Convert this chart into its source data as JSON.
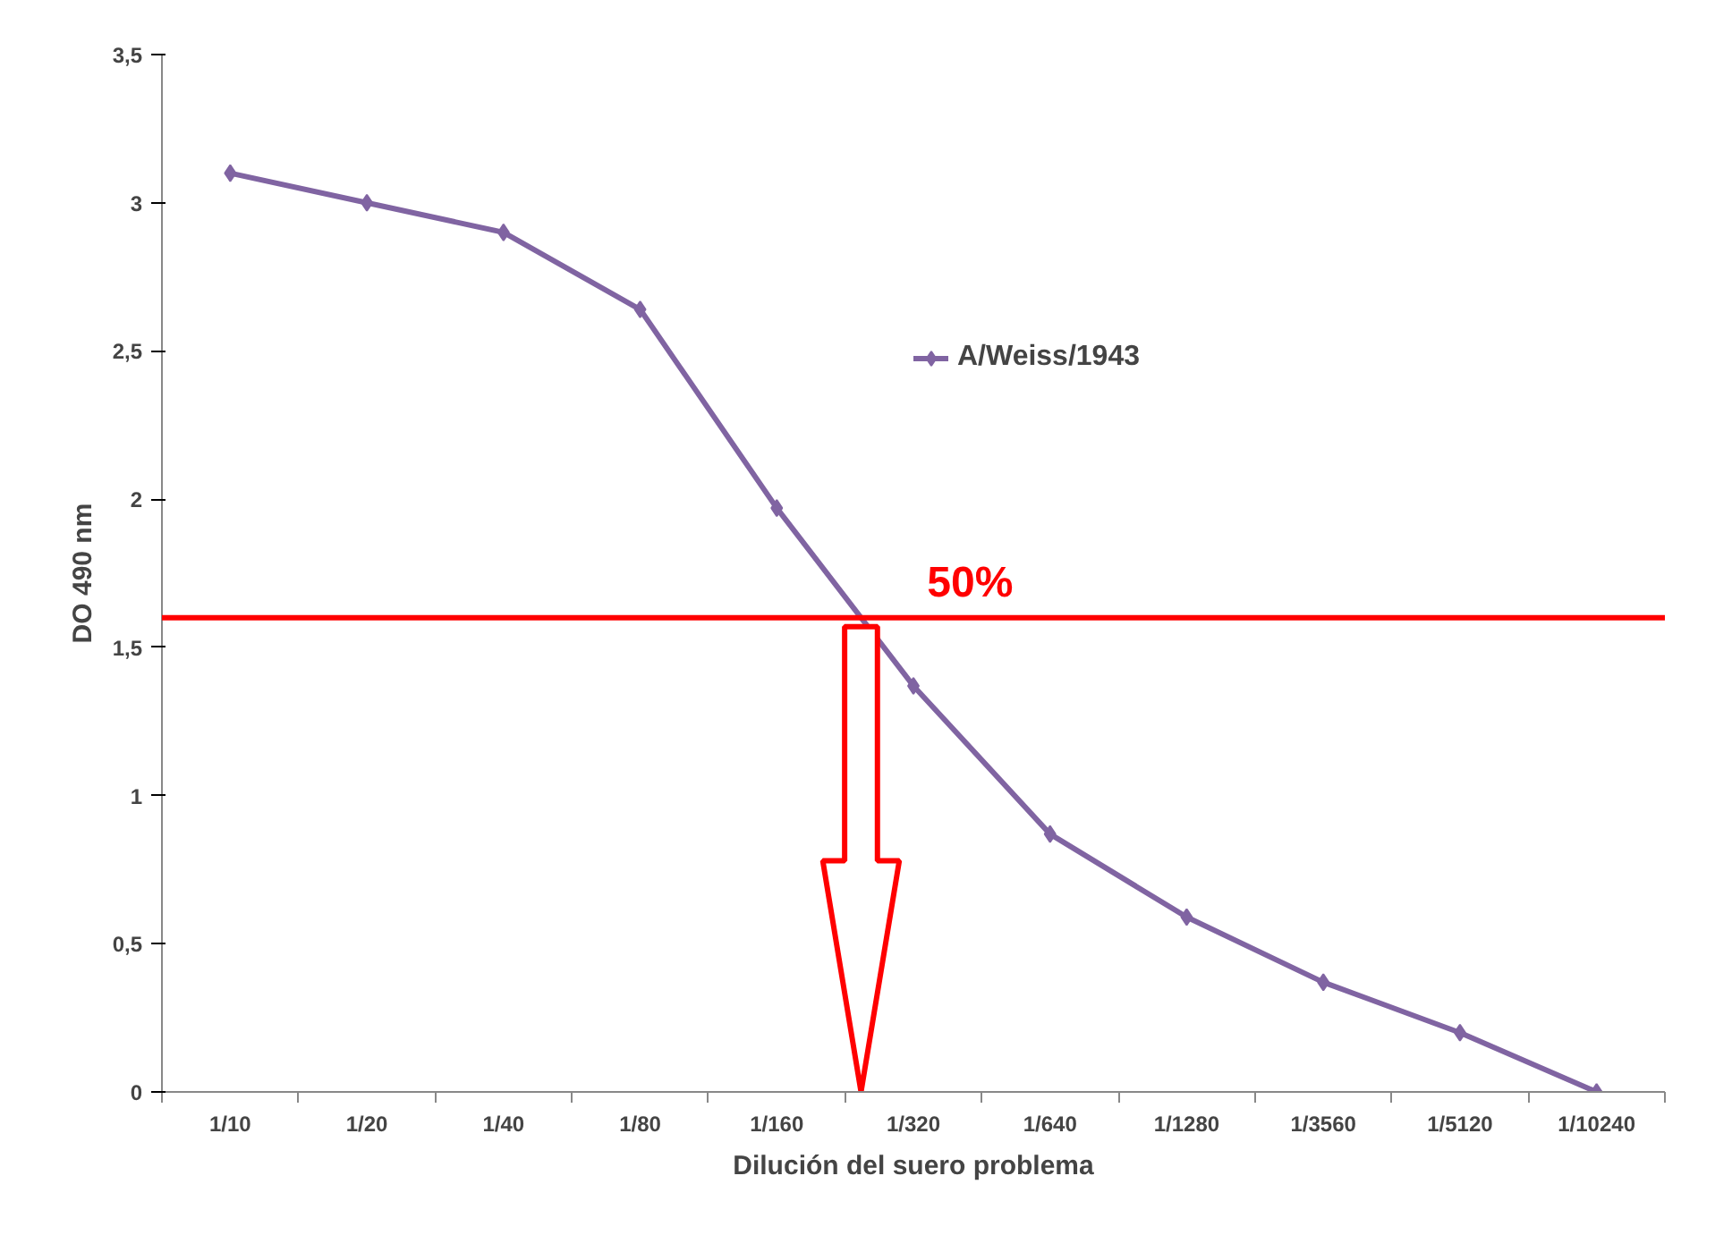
{
  "chart_data": {
    "type": "line",
    "xlabel": "Dilución del suero problema",
    "ylabel": "DO 490 nm",
    "categories": [
      "1/10",
      "1/20",
      "1/40",
      "1/80",
      "1/160",
      "1/320",
      "1/640",
      "1/1280",
      "1/3560",
      "1/5120",
      "1/10240"
    ],
    "series": [
      {
        "name": "A/Weiss/1943",
        "color": "#8064a2",
        "values": [
          3.1,
          3.0,
          2.9,
          2.64,
          1.97,
          1.37,
          0.87,
          0.59,
          0.37,
          0.2,
          0.0
        ]
      }
    ],
    "ylim": [
      0,
      3.5
    ],
    "yticks": [
      0,
      {
        "value": 0.5,
        "label": "0,5"
      },
      1,
      {
        "value": 1.5,
        "label": "1,5"
      },
      2,
      {
        "value": 2.5,
        "label": "2,5"
      },
      3,
      {
        "value": 3.5,
        "label": "3,5"
      }
    ],
    "ref_lines": [
      {
        "axis": "y",
        "value": 1.6,
        "color": "#ff0000"
      }
    ],
    "annotations": [
      "50%"
    ],
    "marker": "diamond",
    "line_style": "solid",
    "legend": "top",
    "grid": false
  }
}
